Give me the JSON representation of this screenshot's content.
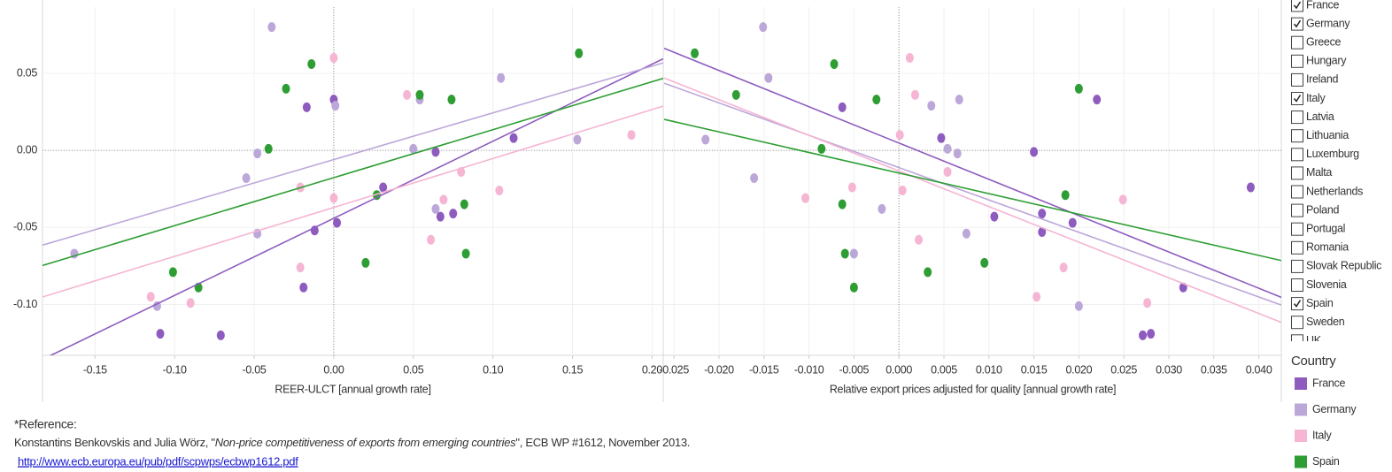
{
  "chart_data": [
    {
      "type": "scatter",
      "x_label": "REER-ULCT  [annual growth rate]",
      "xlim": [
        -0.183,
        0.207
      ],
      "ylim": [
        -0.133,
        0.093
      ],
      "xticks": [
        -0.15,
        {
          "value": -0.1,
          "label": "-0.10"
        },
        -0.05,
        {
          "value": 0,
          "label": "0.00"
        },
        0.05,
        {
          "value": 0.1,
          "label": "0.10"
        },
        0.15,
        {
          "value": 0.2,
          "label": "0.20"
        }
      ],
      "yticks": [
        0.05,
        {
          "value": 0,
          "label": "0.00"
        },
        -0.05,
        {
          "value": -0.1,
          "label": "-0.10"
        }
      ],
      "grid": true,
      "trend_lines": true,
      "series": [
        {
          "name": "France",
          "color": "#8e5cbf",
          "x": [
            0.0,
            -0.017,
            0.113,
            0.064,
            0.031,
            0.002,
            -0.012,
            0.067,
            0.075,
            -0.019,
            -0.109,
            -0.071
          ],
          "values": [
            0.033,
            0.028,
            0.008,
            -0.001,
            -0.024,
            -0.047,
            -0.052,
            -0.043,
            -0.041,
            -0.089,
            -0.119,
            -0.12
          ]
        },
        {
          "name": "Germany",
          "color": "#bca7d9",
          "x": [
            -0.039,
            0.105,
            0.054,
            0.001,
            0.05,
            0.153,
            -0.048,
            -0.055,
            0.064,
            -0.048,
            -0.111,
            -0.163
          ],
          "values": [
            0.08,
            0.047,
            0.033,
            0.029,
            0.001,
            0.007,
            -0.002,
            -0.018,
            -0.038,
            -0.054,
            -0.101,
            -0.067
          ]
        },
        {
          "name": "Italy",
          "color": "#f5b5d3",
          "x": [
            0.0,
            0.046,
            0.187,
            -0.021,
            0.0,
            0.069,
            0.08,
            0.104,
            0.061,
            -0.021,
            -0.115,
            -0.09
          ],
          "values": [
            0.06,
            0.036,
            0.01,
            -0.024,
            -0.031,
            -0.032,
            -0.014,
            -0.026,
            -0.058,
            -0.076,
            -0.095,
            -0.099
          ]
        },
        {
          "name": "Spain",
          "color": "#2e9e34",
          "x": [
            0.154,
            -0.014,
            -0.03,
            0.054,
            0.074,
            -0.041,
            0.027,
            0.082,
            0.02,
            0.083,
            -0.101,
            -0.085
          ],
          "values": [
            0.063,
            0.056,
            0.04,
            0.036,
            0.033,
            0.001,
            -0.029,
            -0.035,
            -0.073,
            -0.067,
            -0.079,
            -0.089
          ]
        }
      ]
    },
    {
      "type": "scatter",
      "x_label": "Relative export prices adjusted for quality [annual growth rate]",
      "xlim": [
        -0.0261,
        0.0425
      ],
      "ylim": [
        -0.133,
        0.093
      ],
      "xticks": [
        -0.025,
        {
          "value": -0.02,
          "label": "-0.020"
        },
        -0.015,
        {
          "value": -0.01,
          "label": "-0.010"
        },
        -0.005,
        {
          "value": 0,
          "label": "0.000"
        },
        0.005,
        {
          "value": 0.01,
          "label": "0.010"
        },
        0.015,
        {
          "value": 0.02,
          "label": "0.020"
        },
        0.025,
        {
          "value": 0.03,
          "label": "0.030"
        },
        0.035,
        {
          "value": 0.04,
          "label": "0.040"
        }
      ],
      "grid": true,
      "trend_lines": true,
      "series": [
        {
          "name": "France",
          "color": "#8e5cbf",
          "x": [
            -0.0063,
            0.0047,
            0.015,
            0.0391,
            0.0106,
            0.0159,
            0.0159,
            0.0193,
            0.0316,
            0.0271,
            0.028,
            0.022
          ],
          "values": [
            0.028,
            0.008,
            -0.001,
            -0.024,
            -0.043,
            -0.041,
            -0.053,
            -0.047,
            -0.089,
            -0.12,
            -0.119,
            0.033
          ]
        },
        {
          "name": "Germany",
          "color": "#bca7d9",
          "x": [
            -0.0151,
            -0.0145,
            0.0036,
            0.0067,
            0.0054,
            -0.0215,
            0.0065,
            -0.0161,
            -0.0019,
            0.0075,
            0.02,
            -0.005
          ],
          "values": [
            0.08,
            0.047,
            0.029,
            0.033,
            0.001,
            0.007,
            -0.002,
            -0.018,
            -0.038,
            -0.054,
            -0.101,
            -0.067
          ]
        },
        {
          "name": "Italy",
          "color": "#f5b5d3",
          "x": [
            0.0012,
            0.0018,
            0.0001,
            -0.0052,
            -0.0104,
            0.0249,
            0.0054,
            0.0004,
            0.0022,
            0.0183,
            0.0153,
            0.0276
          ],
          "values": [
            0.06,
            0.036,
            0.01,
            -0.024,
            -0.031,
            -0.032,
            -0.014,
            -0.026,
            -0.058,
            -0.076,
            -0.095,
            -0.099
          ]
        },
        {
          "name": "Spain",
          "color": "#2e9e34",
          "x": [
            -0.0227,
            -0.0072,
            0.02,
            -0.0181,
            -0.0025,
            -0.0086,
            0.0185,
            -0.0063,
            0.0095,
            -0.006,
            0.0032,
            -0.005
          ],
          "values": [
            0.063,
            0.056,
            0.04,
            0.036,
            0.033,
            0.001,
            -0.029,
            -0.035,
            -0.073,
            -0.067,
            -0.079,
            -0.089
          ]
        }
      ]
    }
  ],
  "filter": {
    "items": [
      {
        "label": "France",
        "checked": true
      },
      {
        "label": "Germany",
        "checked": true
      },
      {
        "label": "Greece",
        "checked": false
      },
      {
        "label": "Hungary",
        "checked": false
      },
      {
        "label": "Ireland",
        "checked": false
      },
      {
        "label": "Italy",
        "checked": true
      },
      {
        "label": "Latvia",
        "checked": false
      },
      {
        "label": "Lithuania",
        "checked": false
      },
      {
        "label": "Luxemburg",
        "checked": false
      },
      {
        "label": "Malta",
        "checked": false
      },
      {
        "label": "Netherlands",
        "checked": false
      },
      {
        "label": "Poland",
        "checked": false
      },
      {
        "label": "Portugal",
        "checked": false
      },
      {
        "label": "Romania",
        "checked": false
      },
      {
        "label": "Slovak Republic",
        "checked": false
      },
      {
        "label": "Slovenia",
        "checked": false
      },
      {
        "label": "Spain",
        "checked": true
      },
      {
        "label": "Sweden",
        "checked": false
      },
      {
        "label": "UK",
        "checked": false
      }
    ]
  },
  "legend": {
    "title": "Country"
  },
  "reference": {
    "heading": "*Reference:",
    "authors": "Konstantins Benkovskis and Julia Wörz, \"",
    "paper": "Non-price competitiveness of exports from emerging countries",
    "details": "\", ECB WP #1612, November 2013.",
    "link": "http://www.ecb.europa.eu/pub/pdf/scpwps/ecbwp1612.pdf"
  }
}
